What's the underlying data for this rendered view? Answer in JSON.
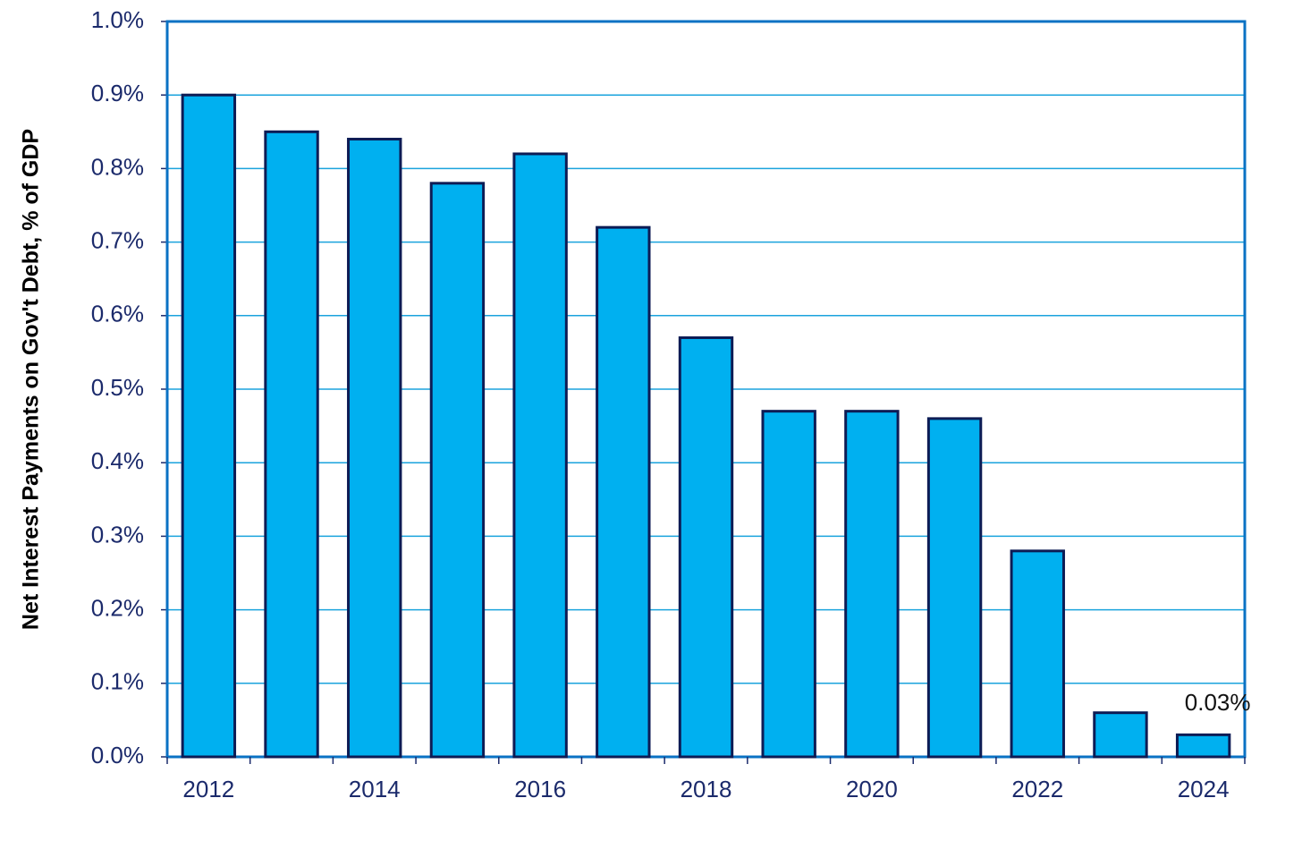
{
  "chart_data": {
    "type": "bar",
    "y_label": "Net Interest Payments  on Gov't Debt, % of GDP",
    "categories": [
      "2012",
      null,
      "2014",
      null,
      "2016",
      null,
      "2018",
      null,
      "2020",
      null,
      "2022",
      null,
      "2024"
    ],
    "values": [
      0.9,
      0.85,
      0.84,
      0.78,
      0.82,
      0.72,
      0.57,
      0.47,
      0.47,
      0.46,
      0.28,
      0.06,
      0.03
    ],
    "value_labels": [
      null,
      null,
      null,
      null,
      null,
      null,
      null,
      null,
      null,
      null,
      null,
      null,
      "0.03%"
    ],
    "color": "#00b0f0",
    "ylim": [
      0,
      1.0
    ],
    "yticks": [
      {
        "value": 0,
        "label": "0.0%"
      },
      {
        "value": 0.1,
        "label": "0.1%"
      },
      {
        "value": 0.2,
        "label": "0.2%"
      },
      {
        "value": 0.3,
        "label": "0.3%"
      },
      {
        "value": 0.4,
        "label": "0.4%"
      },
      {
        "value": 0.5,
        "label": "0.5%"
      },
      {
        "value": 0.6,
        "label": "0.6%"
      },
      {
        "value": 0.7,
        "label": "0.7%"
      },
      {
        "value": 0.8,
        "label": "0.8%"
      },
      {
        "value": 0.9,
        "label": "0.9%"
      },
      {
        "value": 1.0,
        "label": "1.0%"
      }
    ],
    "grid": true
  }
}
